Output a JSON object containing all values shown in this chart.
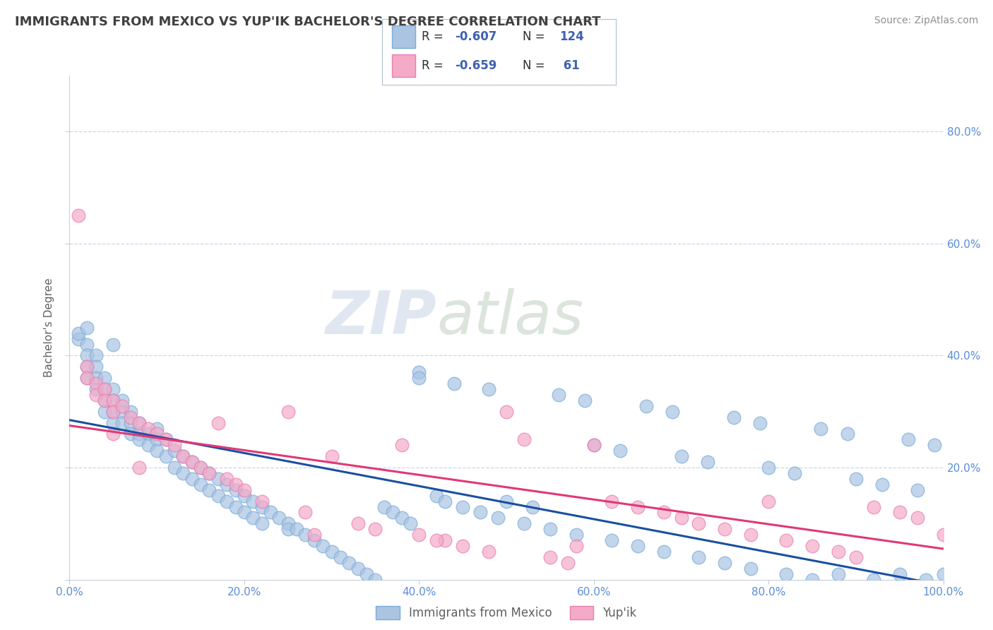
{
  "title": "IMMIGRANTS FROM MEXICO VS YUP'IK BACHELOR'S DEGREE CORRELATION CHART",
  "source": "Source: ZipAtlas.com",
  "ylabel": "Bachelor's Degree",
  "xlim": [
    0.0,
    1.0
  ],
  "ylim": [
    0.0,
    0.9
  ],
  "x_ticks": [
    0.0,
    0.2,
    0.4,
    0.6,
    0.8,
    1.0
  ],
  "x_tick_labels": [
    "0.0%",
    "20.0%",
    "40.0%",
    "60.0%",
    "80.0%",
    "100.0%"
  ],
  "y_ticks": [
    0.0,
    0.2,
    0.4,
    0.6,
    0.8
  ],
  "y_tick_labels_right": [
    "20.0%",
    "40.0%",
    "60.0%",
    "80.0%"
  ],
  "right_y_ticks": [
    0.2,
    0.4,
    0.6,
    0.8
  ],
  "legend_label1": "Immigrants from Mexico",
  "legend_label2": "Yup'ik",
  "blue_color": "#aac4e2",
  "blue_edge_color": "#7aacda",
  "pink_color": "#f5aac8",
  "pink_edge_color": "#e880b0",
  "blue_line_color": "#1a4fa0",
  "pink_line_color": "#e03878",
  "title_color": "#404040",
  "tick_color": "#5b8dd9",
  "grid_color": "#c8d8ec",
  "blue_line_x0": 0.0,
  "blue_line_x1": 1.0,
  "blue_line_y0": 0.285,
  "blue_line_y1": -0.01,
  "pink_line_x0": 0.0,
  "pink_line_x1": 1.0,
  "pink_line_y0": 0.275,
  "pink_line_y1": 0.055,
  "blue_scatter_x": [
    0.01,
    0.01,
    0.02,
    0.02,
    0.02,
    0.02,
    0.03,
    0.03,
    0.03,
    0.03,
    0.04,
    0.04,
    0.04,
    0.04,
    0.05,
    0.05,
    0.05,
    0.05,
    0.06,
    0.06,
    0.06,
    0.07,
    0.07,
    0.07,
    0.08,
    0.08,
    0.08,
    0.09,
    0.09,
    0.1,
    0.1,
    0.1,
    0.11,
    0.11,
    0.12,
    0.12,
    0.13,
    0.13,
    0.14,
    0.14,
    0.15,
    0.15,
    0.16,
    0.16,
    0.17,
    0.17,
    0.18,
    0.18,
    0.19,
    0.19,
    0.2,
    0.2,
    0.21,
    0.21,
    0.22,
    0.22,
    0.23,
    0.24,
    0.25,
    0.25,
    0.26,
    0.27,
    0.28,
    0.29,
    0.3,
    0.31,
    0.32,
    0.33,
    0.34,
    0.35,
    0.36,
    0.37,
    0.38,
    0.39,
    0.4,
    0.42,
    0.43,
    0.45,
    0.47,
    0.49,
    0.52,
    0.55,
    0.58,
    0.62,
    0.65,
    0.68,
    0.72,
    0.75,
    0.78,
    0.82,
    0.85,
    0.88,
    0.92,
    0.95,
    0.98,
    1.0,
    0.5,
    0.53,
    0.6,
    0.63,
    0.7,
    0.73,
    0.8,
    0.83,
    0.9,
    0.93,
    0.97,
    0.4,
    0.44,
    0.48,
    0.56,
    0.59,
    0.66,
    0.69,
    0.76,
    0.79,
    0.86,
    0.89,
    0.96,
    0.99,
    0.02,
    0.05
  ],
  "blue_scatter_y": [
    0.43,
    0.44,
    0.42,
    0.4,
    0.38,
    0.36,
    0.4,
    0.38,
    0.36,
    0.34,
    0.36,
    0.34,
    0.32,
    0.3,
    0.34,
    0.32,
    0.3,
    0.28,
    0.32,
    0.3,
    0.28,
    0.3,
    0.28,
    0.26,
    0.28,
    0.26,
    0.25,
    0.26,
    0.24,
    0.27,
    0.25,
    0.23,
    0.25,
    0.22,
    0.23,
    0.2,
    0.22,
    0.19,
    0.21,
    0.18,
    0.2,
    0.17,
    0.19,
    0.16,
    0.18,
    0.15,
    0.17,
    0.14,
    0.16,
    0.13,
    0.15,
    0.12,
    0.14,
    0.11,
    0.13,
    0.1,
    0.12,
    0.11,
    0.1,
    0.09,
    0.09,
    0.08,
    0.07,
    0.06,
    0.05,
    0.04,
    0.03,
    0.02,
    0.01,
    0.0,
    0.13,
    0.12,
    0.11,
    0.1,
    0.37,
    0.15,
    0.14,
    0.13,
    0.12,
    0.11,
    0.1,
    0.09,
    0.08,
    0.07,
    0.06,
    0.05,
    0.04,
    0.03,
    0.02,
    0.01,
    0.0,
    0.01,
    0.0,
    0.01,
    0.0,
    0.01,
    0.14,
    0.13,
    0.24,
    0.23,
    0.22,
    0.21,
    0.2,
    0.19,
    0.18,
    0.17,
    0.16,
    0.36,
    0.35,
    0.34,
    0.33,
    0.32,
    0.31,
    0.3,
    0.29,
    0.28,
    0.27,
    0.26,
    0.25,
    0.24,
    0.45,
    0.42
  ],
  "pink_scatter_x": [
    0.01,
    0.02,
    0.02,
    0.03,
    0.03,
    0.04,
    0.04,
    0.05,
    0.05,
    0.06,
    0.07,
    0.08,
    0.09,
    0.1,
    0.11,
    0.12,
    0.13,
    0.14,
    0.15,
    0.16,
    0.17,
    0.18,
    0.19,
    0.2,
    0.22,
    0.25,
    0.27,
    0.3,
    0.33,
    0.35,
    0.38,
    0.4,
    0.43,
    0.45,
    0.48,
    0.5,
    0.52,
    0.55,
    0.57,
    0.6,
    0.62,
    0.65,
    0.68,
    0.7,
    0.72,
    0.75,
    0.78,
    0.8,
    0.82,
    0.85,
    0.88,
    0.9,
    0.92,
    0.95,
    0.97,
    1.0,
    0.05,
    0.08,
    0.28,
    0.42,
    0.58
  ],
  "pink_scatter_y": [
    0.65,
    0.38,
    0.36,
    0.35,
    0.33,
    0.34,
    0.32,
    0.32,
    0.3,
    0.31,
    0.29,
    0.28,
    0.27,
    0.26,
    0.25,
    0.24,
    0.22,
    0.21,
    0.2,
    0.19,
    0.28,
    0.18,
    0.17,
    0.16,
    0.14,
    0.3,
    0.12,
    0.22,
    0.1,
    0.09,
    0.24,
    0.08,
    0.07,
    0.06,
    0.05,
    0.3,
    0.25,
    0.04,
    0.03,
    0.24,
    0.14,
    0.13,
    0.12,
    0.11,
    0.1,
    0.09,
    0.08,
    0.14,
    0.07,
    0.06,
    0.05,
    0.04,
    0.13,
    0.12,
    0.11,
    0.08,
    0.26,
    0.2,
    0.08,
    0.07,
    0.06
  ]
}
